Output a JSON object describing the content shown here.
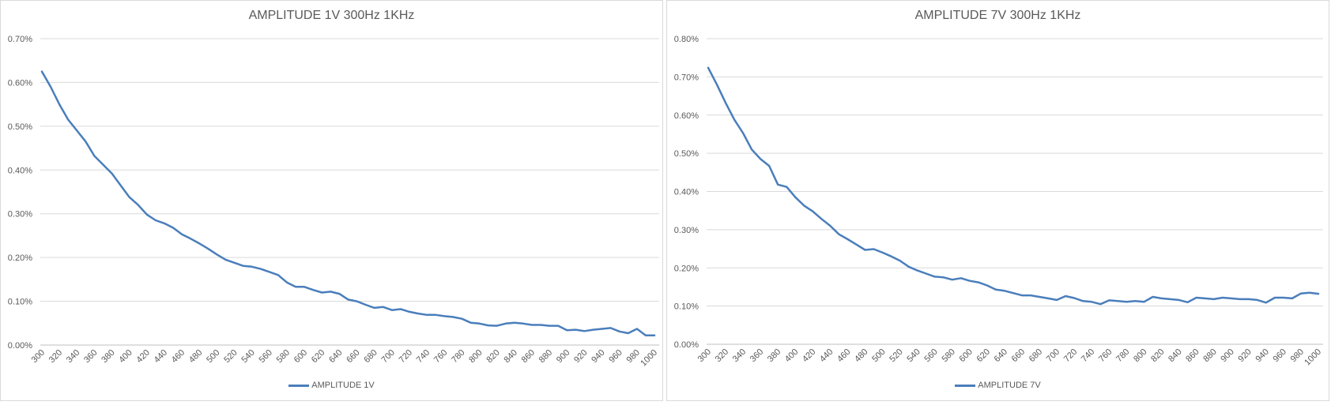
{
  "charts": [
    {
      "title": "AMPLITUDE 1V 300Hz 1KHz",
      "legend": "AMPLITUDE 1V",
      "color": "#4a7ebb"
    },
    {
      "title": "AMPLITUDE 7V 300Hz 1KHz",
      "legend": "AMPLITUDE 7V",
      "color": "#4a7ebb"
    }
  ],
  "chart_data": [
    {
      "type": "line",
      "title": "AMPLITUDE 1V 300Hz 1KHz",
      "xlabel": "",
      "ylabel": "",
      "ylim": [
        0,
        0.7
      ],
      "y_ticks": [
        "0.00%",
        "0.10%",
        "0.20%",
        "0.30%",
        "0.40%",
        "0.50%",
        "0.60%",
        "0.70%"
      ],
      "y_tick_values": [
        0,
        0.1,
        0.2,
        0.3,
        0.4,
        0.5,
        0.6,
        0.7
      ],
      "x_ticks": [
        300,
        320,
        340,
        360,
        380,
        400,
        420,
        440,
        460,
        480,
        500,
        520,
        540,
        560,
        580,
        600,
        620,
        640,
        660,
        680,
        700,
        720,
        740,
        760,
        780,
        800,
        820,
        840,
        860,
        880,
        900,
        920,
        940,
        960,
        980,
        1000
      ],
      "grid": true,
      "legend_position": "bottom",
      "series": [
        {
          "name": "AMPLITUDE 1V",
          "x": [
            300,
            310,
            320,
            330,
            340,
            350,
            360,
            370,
            380,
            390,
            400,
            410,
            420,
            430,
            440,
            450,
            460,
            470,
            480,
            490,
            500,
            510,
            520,
            530,
            540,
            550,
            560,
            570,
            580,
            590,
            600,
            610,
            620,
            630,
            640,
            650,
            660,
            670,
            680,
            690,
            700,
            710,
            720,
            730,
            740,
            750,
            760,
            770,
            780,
            790,
            800,
            810,
            820,
            830,
            840,
            850,
            860,
            870,
            880,
            890,
            900,
            910,
            920,
            930,
            940,
            950,
            960,
            970,
            980,
            990,
            1000
          ],
          "values": [
            0.625,
            0.59,
            0.55,
            0.515,
            0.49,
            0.465,
            0.432,
            0.412,
            0.392,
            0.365,
            0.338,
            0.32,
            0.298,
            0.285,
            0.278,
            0.268,
            0.253,
            0.243,
            0.232,
            0.22,
            0.207,
            0.195,
            0.188,
            0.181,
            0.179,
            0.174,
            0.167,
            0.16,
            0.143,
            0.133,
            0.133,
            0.126,
            0.12,
            0.122,
            0.117,
            0.104,
            0.1,
            0.092,
            0.085,
            0.087,
            0.08,
            0.082,
            0.076,
            0.072,
            0.069,
            0.069,
            0.066,
            0.064,
            0.06,
            0.051,
            0.049,
            0.045,
            0.044,
            0.049,
            0.051,
            0.049,
            0.046,
            0.046,
            0.044,
            0.044,
            0.034,
            0.035,
            0.032,
            0.035,
            0.037,
            0.039,
            0.031,
            0.027,
            0.037,
            0.022,
            0.022
          ]
        }
      ]
    },
    {
      "type": "line",
      "title": "AMPLITUDE 7V 300Hz 1KHz",
      "xlabel": "",
      "ylabel": "",
      "ylim": [
        0,
        0.8
      ],
      "y_ticks": [
        "0.00%",
        "0.10%",
        "0.20%",
        "0.30%",
        "0.40%",
        "0.50%",
        "0.60%",
        "0.70%",
        "0.80%"
      ],
      "y_tick_values": [
        0,
        0.1,
        0.2,
        0.3,
        0.4,
        0.5,
        0.6,
        0.7,
        0.8
      ],
      "x_ticks": [
        300,
        320,
        340,
        360,
        380,
        400,
        420,
        440,
        460,
        480,
        500,
        520,
        540,
        560,
        580,
        600,
        620,
        640,
        660,
        680,
        700,
        720,
        740,
        760,
        780,
        800,
        820,
        840,
        860,
        880,
        900,
        920,
        940,
        960,
        980,
        1000
      ],
      "grid": true,
      "legend_position": "bottom",
      "series": [
        {
          "name": "AMPLITUDE 7V",
          "x": [
            300,
            310,
            320,
            330,
            340,
            350,
            360,
            370,
            380,
            390,
            400,
            410,
            420,
            430,
            440,
            450,
            460,
            470,
            480,
            490,
            500,
            510,
            520,
            530,
            540,
            550,
            560,
            570,
            580,
            590,
            600,
            610,
            620,
            630,
            640,
            650,
            660,
            670,
            680,
            690,
            700,
            710,
            720,
            730,
            740,
            750,
            760,
            770,
            780,
            790,
            800,
            810,
            820,
            830,
            840,
            850,
            860,
            870,
            880,
            890,
            900,
            910,
            920,
            930,
            940,
            950,
            960,
            970,
            980,
            990,
            1000
          ],
          "values": [
            0.724,
            0.68,
            0.632,
            0.588,
            0.553,
            0.51,
            0.485,
            0.467,
            0.418,
            0.412,
            0.385,
            0.363,
            0.348,
            0.328,
            0.31,
            0.288,
            0.275,
            0.261,
            0.247,
            0.249,
            0.24,
            0.23,
            0.219,
            0.203,
            0.193,
            0.185,
            0.177,
            0.175,
            0.169,
            0.173,
            0.166,
            0.162,
            0.154,
            0.143,
            0.14,
            0.134,
            0.128,
            0.128,
            0.124,
            0.12,
            0.116,
            0.126,
            0.121,
            0.113,
            0.111,
            0.105,
            0.115,
            0.113,
            0.111,
            0.113,
            0.111,
            0.124,
            0.12,
            0.118,
            0.116,
            0.11,
            0.122,
            0.12,
            0.118,
            0.122,
            0.12,
            0.118,
            0.118,
            0.116,
            0.109,
            0.122,
            0.122,
            0.12,
            0.133,
            0.135,
            0.132
          ]
        }
      ]
    }
  ]
}
